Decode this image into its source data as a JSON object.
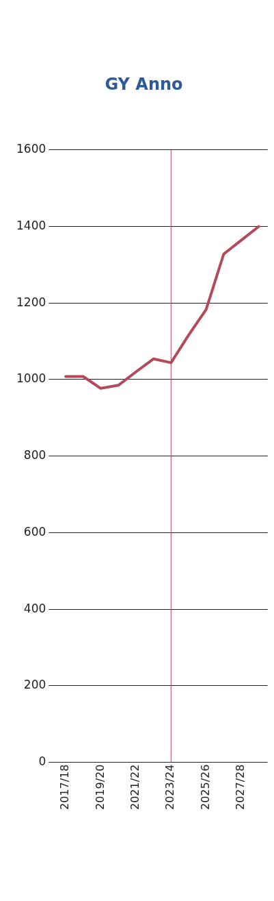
{
  "chart_data": {
    "type": "line",
    "title": "GY Anno",
    "categories": [
      "2017/18",
      null,
      "2019/20",
      null,
      "2021/22",
      null,
      "2023/24",
      null,
      "2025/26",
      null,
      "2027/28",
      null
    ],
    "series": [
      {
        "color": "#b5485a",
        "values": [
          1008,
          1008,
          977,
          985,
          1020,
          1054,
          1044,
          1116,
          1183,
          1328,
          1364,
          1400
        ]
      }
    ],
    "ylim": [
      0,
      1600
    ],
    "yticks": [
      0,
      200,
      400,
      600,
      800,
      1000,
      1200,
      1400,
      1600
    ],
    "ref_lines": [
      {
        "axis": "x",
        "value": "2023/24",
        "color": "#b5485a"
      }
    ],
    "grid": "y",
    "legend": false,
    "marker": "none",
    "line_style": "solid"
  }
}
